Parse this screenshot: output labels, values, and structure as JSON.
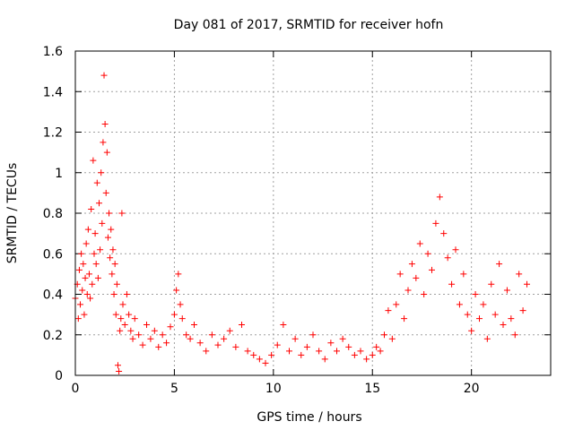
{
  "chart_data": {
    "type": "scatter",
    "title": "Day 081 of 2017, SRMTID for receiver hofn",
    "xlabel": "GPS time / hours",
    "ylabel": "SRMTID / TECUs",
    "xlim": [
      0,
      24
    ],
    "ylim": [
      0,
      1.6
    ],
    "x_ticks": [
      0,
      5,
      10,
      15,
      20
    ],
    "x_tick_labels": [
      "0",
      "5",
      "10",
      "15",
      "20"
    ],
    "y_ticks": [
      0,
      0.2,
      0.4,
      0.6,
      0.8,
      1,
      1.2,
      1.4,
      1.6
    ],
    "y_tick_labels": [
      "0",
      "0.2",
      "0.4",
      "0.6",
      "0.8",
      "1",
      "1.2",
      "1.4",
      "1.6"
    ],
    "grid": true,
    "marker": "+",
    "color": "#ff0000",
    "series": [
      {
        "name": "SRMTID",
        "x": [
          0.0,
          0.1,
          0.15,
          0.2,
          0.25,
          0.3,
          0.35,
          0.4,
          0.45,
          0.5,
          0.55,
          0.6,
          0.65,
          0.7,
          0.75,
          0.8,
          0.85,
          0.9,
          0.95,
          1.0,
          1.05,
          1.1,
          1.15,
          1.2,
          1.25,
          1.3,
          1.35,
          1.4,
          1.45,
          1.5,
          1.55,
          1.6,
          1.65,
          1.7,
          1.75,
          1.8,
          1.85,
          1.9,
          1.95,
          2.0,
          2.05,
          2.1,
          2.15,
          2.2,
          2.25,
          2.3,
          2.35,
          2.4,
          2.5,
          2.6,
          2.7,
          2.8,
          2.9,
          3.0,
          3.2,
          3.4,
          3.6,
          3.8,
          4.0,
          4.2,
          4.4,
          4.6,
          4.8,
          5.0,
          5.1,
          5.2,
          5.3,
          5.4,
          5.6,
          5.8,
          6.0,
          6.3,
          6.6,
          6.9,
          7.2,
          7.5,
          7.8,
          8.1,
          8.4,
          8.7,
          9.0,
          9.3,
          9.6,
          9.9,
          10.2,
          10.5,
          10.8,
          11.1,
          11.4,
          11.7,
          12.0,
          12.3,
          12.6,
          12.9,
          13.2,
          13.5,
          13.8,
          14.1,
          14.4,
          14.7,
          15.0,
          15.2,
          15.4,
          15.6,
          15.8,
          16.0,
          16.2,
          16.4,
          16.6,
          16.8,
          17.0,
          17.2,
          17.4,
          17.6,
          17.8,
          18.0,
          18.2,
          18.4,
          18.6,
          18.8,
          19.0,
          19.2,
          19.4,
          19.6,
          19.8,
          20.0,
          20.2,
          20.4,
          20.6,
          20.8,
          21.0,
          21.2,
          21.4,
          21.6,
          21.8,
          22.0,
          22.2,
          22.4,
          22.6,
          22.8
        ],
        "y": [
          0.38,
          0.45,
          0.28,
          0.52,
          0.35,
          0.6,
          0.42,
          0.55,
          0.3,
          0.48,
          0.65,
          0.4,
          0.72,
          0.5,
          0.38,
          0.82,
          0.45,
          1.06,
          0.6,
          0.7,
          0.55,
          0.95,
          0.48,
          0.85,
          0.62,
          1.0,
          0.75,
          1.15,
          1.48,
          1.24,
          0.9,
          1.1,
          0.68,
          0.8,
          0.58,
          0.72,
          0.5,
          0.62,
          0.4,
          0.55,
          0.3,
          0.45,
          0.05,
          0.02,
          0.22,
          0.28,
          0.8,
          0.35,
          0.25,
          0.4,
          0.3,
          0.22,
          0.18,
          0.28,
          0.2,
          0.15,
          0.25,
          0.18,
          0.22,
          0.14,
          0.2,
          0.16,
          0.24,
          0.3,
          0.42,
          0.5,
          0.35,
          0.28,
          0.2,
          0.18,
          0.25,
          0.16,
          0.12,
          0.2,
          0.15,
          0.18,
          0.22,
          0.14,
          0.25,
          0.12,
          0.1,
          0.08,
          0.06,
          0.1,
          0.15,
          0.25,
          0.12,
          0.18,
          0.1,
          0.14,
          0.2,
          0.12,
          0.08,
          0.16,
          0.12,
          0.18,
          0.14,
          0.1,
          0.12,
          0.08,
          0.1,
          0.14,
          0.12,
          0.2,
          0.32,
          0.18,
          0.35,
          0.5,
          0.28,
          0.42,
          0.55,
          0.48,
          0.65,
          0.4,
          0.6,
          0.52,
          0.75,
          0.88,
          0.7,
          0.58,
          0.45,
          0.62,
          0.35,
          0.5,
          0.3,
          0.22,
          0.4,
          0.28,
          0.35,
          0.18,
          0.45,
          0.3,
          0.55,
          0.25,
          0.42,
          0.28,
          0.2,
          0.5,
          0.32,
          0.45
        ]
      }
    ]
  }
}
